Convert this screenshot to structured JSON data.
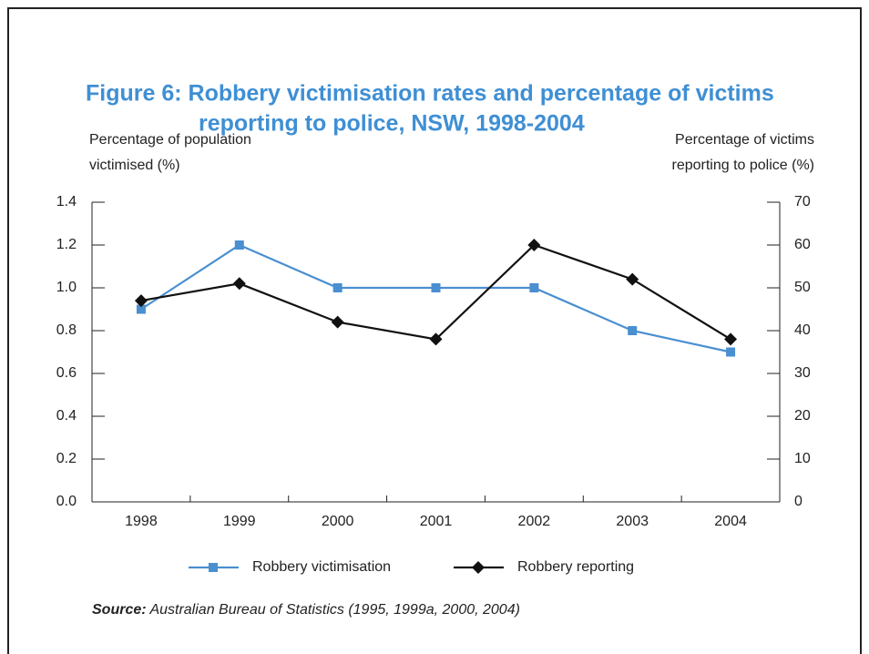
{
  "chart_data": {
    "type": "line",
    "title": [
      "Figure 6: Robbery victimisation rates and percentage of victims",
      "reporting to police, NSW, 1998-2004"
    ],
    "ylabel": [
      "Percentage of population",
      "victimised (%)"
    ],
    "y2label": [
      "Percentage of victims",
      "reporting to police (%)"
    ],
    "categories": [
      "1998",
      "1999",
      "2000",
      "2001",
      "2002",
      "2003",
      "2004"
    ],
    "series": [
      {
        "name": "Robbery victimisation",
        "color": "#4a8fd0",
        "marker": "square",
        "values": [
          0.9,
          1.2,
          1.0,
          1.0,
          1.0,
          0.8,
          0.7
        ]
      },
      {
        "name": "Robbery reporting",
        "color": "#111111",
        "marker": "diamond",
        "axis": "y2",
        "values": [
          47,
          51,
          42,
          38,
          60,
          52,
          38
        ]
      }
    ],
    "ylim": [
      0,
      1.4
    ],
    "yticks": [
      {
        "value": 0,
        "label": "0.0"
      },
      0.2,
      0.4,
      0.6,
      0.8,
      {
        "value": 1,
        "label": "1.0"
      },
      1.2,
      1.4
    ],
    "y2lim": [
      0,
      70
    ],
    "y2ticks": [
      0,
      10,
      20,
      30,
      40,
      50,
      60,
      70
    ],
    "source": {
      "label": "Source:",
      "text": "Australian Bureau of Statistics (1995, 1999a, 2000, 2004)"
    }
  }
}
